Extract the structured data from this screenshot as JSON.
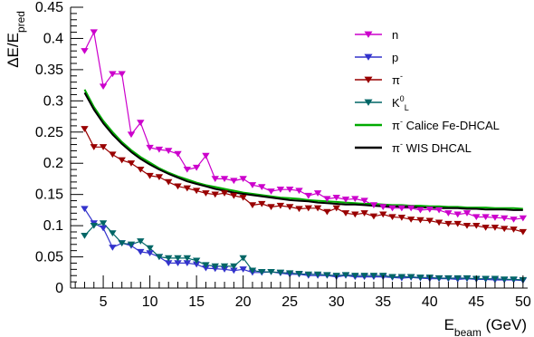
{
  "chart_data": {
    "type": "line",
    "xlim": [
      1.5,
      50.5
    ],
    "ylim": [
      0,
      0.45
    ],
    "grid": false,
    "legend_position": "top-right",
    "x_ticks": [
      5,
      10,
      15,
      20,
      25,
      30,
      35,
      40,
      45,
      50
    ],
    "x_tick_labels": [
      "5",
      "10",
      "15",
      "20",
      "25",
      "30",
      "35",
      "40",
      "45",
      "50"
    ],
    "y_ticks": [
      0,
      0.05,
      0.1,
      0.15,
      0.2,
      0.25,
      0.3,
      0.35,
      0.4,
      0.45
    ],
    "y_tick_labels": [
      "0",
      "0.05",
      "0.1",
      "0.15",
      "0.2",
      "0.25",
      "0.3",
      "0.35",
      "0.4",
      "0.45"
    ],
    "xlabel": {
      "main": "E",
      "sub": "beam",
      "unit": " (GeV)"
    },
    "ylabel": {
      "main": "ΔE/E",
      "sub": "pred"
    },
    "x": [
      3,
      4,
      5,
      6,
      7,
      8,
      9,
      10,
      11,
      12,
      13,
      14,
      15,
      16,
      17,
      18,
      19,
      20,
      21,
      22,
      23,
      24,
      25,
      26,
      27,
      28,
      29,
      30,
      31,
      32,
      33,
      34,
      35,
      36,
      37,
      38,
      39,
      40,
      41,
      42,
      43,
      44,
      45,
      46,
      47,
      48,
      49,
      50
    ],
    "series": [
      {
        "name": "n",
        "label_main": "n",
        "label_sup": "",
        "label_sub": "",
        "label_rest": "",
        "color": "#cc00cc",
        "marker": "triangle-down",
        "values": [
          0.38,
          0.41,
          0.323,
          0.343,
          0.343,
          0.246,
          0.265,
          0.225,
          0.222,
          0.22,
          0.215,
          0.19,
          0.193,
          0.212,
          0.175,
          0.175,
          0.172,
          0.175,
          0.165,
          0.162,
          0.155,
          0.158,
          0.158,
          0.156,
          0.148,
          0.152,
          0.143,
          0.145,
          0.142,
          0.143,
          0.14,
          0.133,
          0.13,
          0.128,
          0.128,
          0.128,
          0.125,
          0.126,
          0.125,
          0.12,
          0.118,
          0.12,
          0.114,
          0.114,
          0.113,
          0.112,
          0.11,
          0.112
        ]
      },
      {
        "name": "p",
        "label_main": "p",
        "label_sup": "",
        "label_sub": "",
        "label_rest": "",
        "color": "#3333cc",
        "marker": "triangle-down",
        "values": [
          0.127,
          0.104,
          0.096,
          0.065,
          0.072,
          0.068,
          0.058,
          0.056,
          0.05,
          0.04,
          0.04,
          0.04,
          0.038,
          0.032,
          0.031,
          0.03,
          0.028,
          0.03,
          0.025,
          0.025,
          0.026,
          0.024,
          0.022,
          0.022,
          0.02,
          0.02,
          0.02,
          0.018,
          0.02,
          0.018,
          0.018,
          0.018,
          0.018,
          0.017,
          0.016,
          0.017,
          0.016,
          0.015,
          0.015,
          0.015,
          0.014,
          0.015,
          0.014,
          0.014,
          0.013,
          0.013,
          0.013,
          0.012
        ]
      },
      {
        "name": "π⁻",
        "label_main": "π",
        "label_sup": "-",
        "label_sub": "",
        "label_rest": "",
        "color": "#990000",
        "marker": "triangle-down",
        "values": [
          0.255,
          0.226,
          0.226,
          0.214,
          0.205,
          0.2,
          0.19,
          0.18,
          0.178,
          0.17,
          0.163,
          0.16,
          0.156,
          0.152,
          0.15,
          0.152,
          0.148,
          0.145,
          0.133,
          0.135,
          0.13,
          0.132,
          0.13,
          0.127,
          0.128,
          0.128,
          0.122,
          0.128,
          0.12,
          0.118,
          0.12,
          0.115,
          0.118,
          0.114,
          0.113,
          0.11,
          0.109,
          0.108,
          0.105,
          0.103,
          0.103,
          0.1,
          0.1,
          0.097,
          0.097,
          0.095,
          0.094,
          0.09
        ]
      },
      {
        "name": "K⁰L",
        "label_main": "K",
        "label_sup": "0",
        "label_sub": "L",
        "label_rest": "",
        "color": "#006666",
        "marker": "triangle-down",
        "values": [
          0.084,
          0.1,
          0.104,
          0.088,
          0.072,
          0.07,
          0.075,
          0.064,
          0.05,
          0.048,
          0.048,
          0.048,
          0.044,
          0.037,
          0.035,
          0.035,
          0.035,
          0.048,
          0.028,
          0.026,
          0.026,
          0.025,
          0.024,
          0.023,
          0.022,
          0.022,
          0.021,
          0.02,
          0.021,
          0.02,
          0.02,
          0.02,
          0.02,
          0.018,
          0.018,
          0.018,
          0.017,
          0.017,
          0.016,
          0.016,
          0.016,
          0.016,
          0.015,
          0.015,
          0.015,
          0.014,
          0.014,
          0.013
        ]
      },
      {
        "name": "π⁻ Calice Fe-DHCAL",
        "label_main": "π",
        "label_sup": "-",
        "label_sub": "",
        "label_rest": " Calice Fe-DHCAL",
        "color": "#00aa00",
        "marker": "none",
        "values": [
          0.318,
          0.29,
          0.268,
          0.25,
          0.234,
          0.221,
          0.21,
          0.201,
          0.192,
          0.185,
          0.179,
          0.174,
          0.169,
          0.165,
          0.162,
          0.159,
          0.156,
          0.153,
          0.151,
          0.149,
          0.147,
          0.145,
          0.144,
          0.143,
          0.141,
          0.14,
          0.139,
          0.138,
          0.137,
          0.136,
          0.135,
          0.135,
          0.134,
          0.133,
          0.133,
          0.132,
          0.132,
          0.131,
          0.131,
          0.13,
          0.13,
          0.129,
          0.129,
          0.129,
          0.128,
          0.128,
          0.128,
          0.127
        ]
      },
      {
        "name": "π⁻ WIS DHCAL",
        "label_main": "π",
        "label_sup": "-",
        "label_sub": "",
        "label_rest": " WIS DHCAL",
        "color": "#000000",
        "marker": "none",
        "values": [
          0.313,
          0.286,
          0.264,
          0.246,
          0.231,
          0.218,
          0.207,
          0.198,
          0.19,
          0.183,
          0.177,
          0.171,
          0.167,
          0.163,
          0.159,
          0.156,
          0.153,
          0.151,
          0.149,
          0.147,
          0.145,
          0.143,
          0.141,
          0.14,
          0.139,
          0.137,
          0.136,
          0.135,
          0.134,
          0.134,
          0.133,
          0.132,
          0.131,
          0.131,
          0.13,
          0.13,
          0.129,
          0.129,
          0.128,
          0.128,
          0.128,
          0.127,
          0.127,
          0.126,
          0.126,
          0.126,
          0.125,
          0.125
        ]
      }
    ]
  }
}
